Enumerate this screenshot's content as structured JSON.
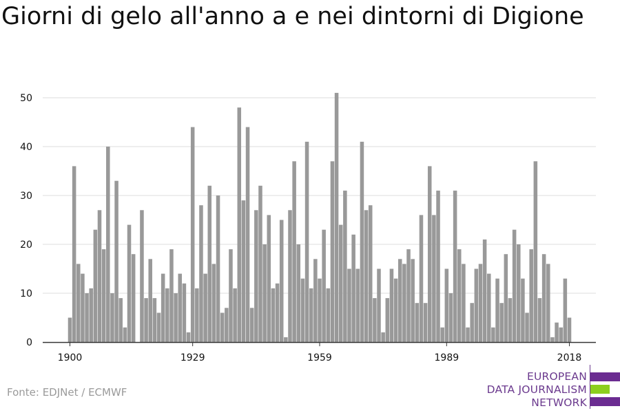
{
  "title": "Giorni di gelo all'anno a e nei dintorni di Digione",
  "source": "Fonte: EDJNet / ECMWF",
  "logo": {
    "lines": [
      "EUROPEAN",
      "DATA JOURNALISM",
      "NETWORK"
    ],
    "colors": {
      "purple": "#6b2c91",
      "green": "#8ccf1e"
    }
  },
  "colors": {
    "bar": "#999999",
    "grid": "#dddddd",
    "axis": "#333333",
    "text": "#111111"
  },
  "chart_data": {
    "type": "bar",
    "title": "Giorni di gelo all'anno a e nei dintorni di Digione",
    "xlabel": "",
    "ylabel": "",
    "x_start": 1900,
    "x_end": 2018,
    "x_ticks": [
      1900,
      1929,
      1959,
      1989,
      2018
    ],
    "y_ticks": [
      0,
      10,
      20,
      30,
      40,
      50
    ],
    "ylim": [
      0,
      52
    ],
    "grid": true,
    "legend": "none",
    "values": [
      5,
      36,
      16,
      14,
      10,
      11,
      23,
      27,
      19,
      40,
      10,
      33,
      9,
      3,
      24,
      18,
      0,
      27,
      9,
      17,
      9,
      6,
      14,
      11,
      19,
      10,
      14,
      12,
      2,
      44,
      11,
      28,
      14,
      32,
      16,
      30,
      6,
      7,
      19,
      11,
      48,
      29,
      44,
      7,
      27,
      32,
      20,
      26,
      11,
      12,
      25,
      1,
      27,
      37,
      20,
      13,
      41,
      11,
      17,
      13,
      23,
      11,
      37,
      51,
      24,
      31,
      15,
      22,
      15,
      41,
      27,
      28,
      9,
      15,
      2,
      9,
      15,
      13,
      17,
      16,
      19,
      17,
      8,
      26,
      8,
      36,
      26,
      31,
      3,
      15,
      10,
      31,
      19,
      16,
      3,
      8,
      15,
      16,
      21,
      14,
      3,
      13,
      8,
      18,
      9,
      23,
      20,
      13,
      6,
      19,
      37,
      9,
      18,
      16,
      1,
      4,
      3,
      13,
      5
    ]
  }
}
